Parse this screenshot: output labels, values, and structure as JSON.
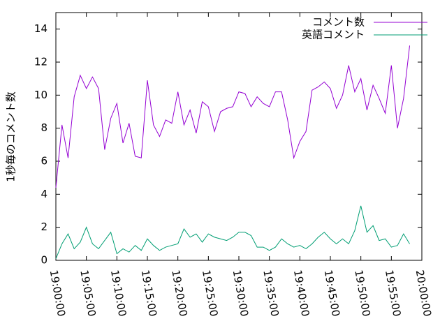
{
  "chart_data": {
    "type": "line",
    "ylabel": "1秒毎のコメント数",
    "x": [
      "19:00:00",
      "19:01:00",
      "19:02:00",
      "19:03:00",
      "19:04:00",
      "19:05:00",
      "19:06:00",
      "19:07:00",
      "19:08:00",
      "19:09:00",
      "19:10:00",
      "19:11:00",
      "19:12:00",
      "19:13:00",
      "19:14:00",
      "19:15:00",
      "19:16:00",
      "19:17:00",
      "19:18:00",
      "19:19:00",
      "19:20:00",
      "19:21:00",
      "19:22:00",
      "19:23:00",
      "19:24:00",
      "19:25:00",
      "19:26:00",
      "19:27:00",
      "19:28:00",
      "19:29:00",
      "19:30:00",
      "19:31:00",
      "19:32:00",
      "19:33:00",
      "19:34:00",
      "19:35:00",
      "19:36:00",
      "19:37:00",
      "19:38:00",
      "19:39:00",
      "19:40:00",
      "19:41:00",
      "19:42:00",
      "19:43:00",
      "19:44:00",
      "19:45:00",
      "19:46:00",
      "19:47:00",
      "19:48:00",
      "19:49:00",
      "19:50:00",
      "19:51:00",
      "19:52:00",
      "19:53:00",
      "19:54:00",
      "19:55:00",
      "19:56:00",
      "19:57:00",
      "19:58:00"
    ],
    "series": [
      {
        "name": "コメント数",
        "color": "#9400d3",
        "values": [
          4.4,
          8.2,
          6.2,
          9.9,
          11.2,
          10.4,
          11.1,
          10.4,
          6.7,
          8.6,
          9.5,
          7.1,
          8.3,
          6.3,
          6.2,
          10.9,
          8.2,
          7.5,
          8.5,
          8.3,
          10.2,
          8.2,
          9.1,
          7.7,
          9.6,
          9.3,
          7.8,
          9.0,
          9.2,
          9.3,
          10.2,
          10.1,
          9.3,
          9.9,
          9.5,
          9.3,
          10.2,
          10.2,
          8.5,
          6.2,
          7.2,
          7.8,
          10.3,
          10.5,
          10.8,
          10.4,
          9.2,
          10.0,
          11.8,
          10.2,
          11.0,
          9.1,
          10.6,
          9.8,
          8.9,
          11.8,
          8.0,
          9.8,
          13.0
        ]
      },
      {
        "name": "英語コメント",
        "color": "#009e73",
        "values": [
          0.1,
          1.0,
          1.6,
          0.7,
          1.1,
          2.0,
          1.0,
          0.7,
          1.2,
          1.7,
          0.4,
          0.7,
          0.5,
          0.9,
          0.6,
          1.3,
          0.9,
          0.6,
          0.8,
          0.9,
          1.0,
          1.9,
          1.4,
          1.6,
          1.1,
          1.6,
          1.4,
          1.3,
          1.2,
          1.4,
          1.7,
          1.7,
          1.5,
          0.8,
          0.8,
          0.6,
          0.8,
          1.3,
          1.0,
          0.8,
          0.9,
          0.7,
          1.0,
          1.4,
          1.7,
          1.3,
          1.0,
          1.3,
          1.0,
          1.8,
          3.3,
          1.7,
          2.1,
          1.2,
          1.3,
          0.8,
          0.9,
          1.6,
          1.0
        ]
      }
    ],
    "xlim": [
      "19:00:00",
      "20:00:00"
    ],
    "xticks": [
      "19:00:00",
      "19:05:00",
      "19:10:00",
      "19:15:00",
      "19:20:00",
      "19:25:00",
      "19:30:00",
      "19:35:00",
      "19:40:00",
      "19:45:00",
      "19:50:00",
      "19:55:00",
      "20:00:00"
    ],
    "ylim": [
      0,
      15
    ],
    "yticks": [
      0,
      2,
      4,
      6,
      8,
      10,
      12,
      14
    ],
    "legend": "top-right"
  }
}
